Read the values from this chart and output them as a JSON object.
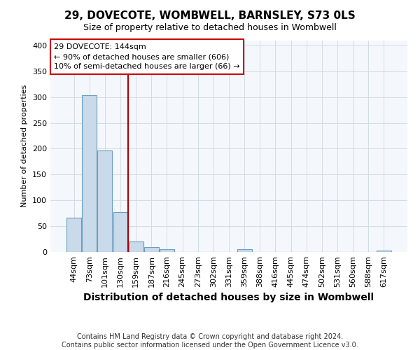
{
  "title": "29, DOVECOTE, WOMBWELL, BARNSLEY, S73 0LS",
  "subtitle": "Size of property relative to detached houses in Wombwell",
  "xlabel": "Distribution of detached houses by size in Wombwell",
  "ylabel": "Number of detached properties",
  "footer_line1": "Contains HM Land Registry data © Crown copyright and database right 2024.",
  "footer_line2": "Contains public sector information licensed under the Open Government Licence v3.0.",
  "categories": [
    "44sqm",
    "73sqm",
    "101sqm",
    "130sqm",
    "159sqm",
    "187sqm",
    "216sqm",
    "245sqm",
    "273sqm",
    "302sqm",
    "331sqm",
    "359sqm",
    "388sqm",
    "416sqm",
    "445sqm",
    "474sqm",
    "502sqm",
    "531sqm",
    "560sqm",
    "588sqm",
    "617sqm"
  ],
  "values": [
    67,
    303,
    197,
    77,
    20,
    10,
    5,
    0,
    0,
    0,
    0,
    5,
    0,
    0,
    0,
    0,
    0,
    0,
    0,
    0,
    3
  ],
  "bar_color": "#c9daea",
  "bar_edge_color": "#6a9ec0",
  "grid_color": "#d0d8e0",
  "background_color": "#ffffff",
  "plot_bg_color": "#f4f7fb",
  "annotation_line1": "29 DOVECOTE: 144sqm",
  "annotation_line2": "← 90% of detached houses are smaller (606)",
  "annotation_line3": "10% of semi-detached houses are larger (66) →",
  "annotation_box_color": "#ffffff",
  "annotation_box_edge_color": "#cc0000",
  "red_line_color": "#aa0000",
  "red_line_x": 3.5,
  "ylim": [
    0,
    410
  ],
  "yticks": [
    0,
    50,
    100,
    150,
    200,
    250,
    300,
    350,
    400
  ],
  "title_fontsize": 11,
  "subtitle_fontsize": 9,
  "ylabel_fontsize": 8,
  "xlabel_fontsize": 10,
  "tick_fontsize": 8,
  "footer_fontsize": 7
}
